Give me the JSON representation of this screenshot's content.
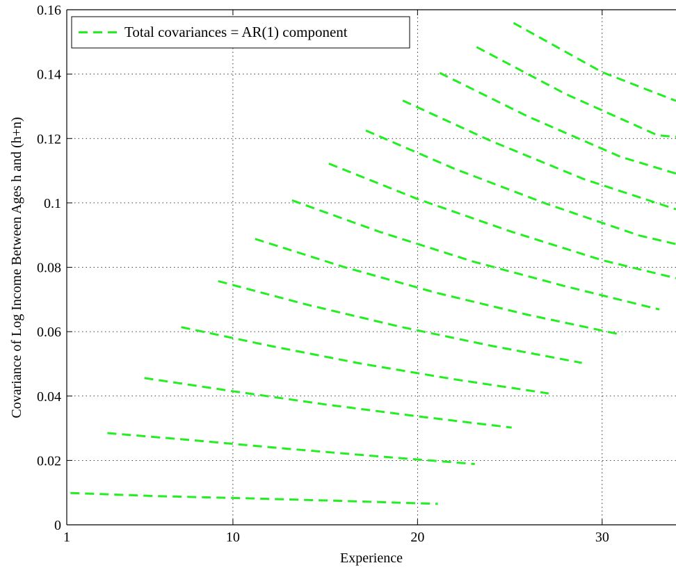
{
  "chart_data": {
    "type": "line",
    "xlabel": "Experience",
    "ylabel": "Covariance of Log Income Between Ages h and (h+n)",
    "xlim": [
      1,
      34
    ],
    "ylim": [
      0,
      0.16
    ],
    "xticks": [
      1,
      10,
      20,
      30
    ],
    "xtick_labels": [
      "1",
      "10",
      "20",
      "30"
    ],
    "yticks": [
      0,
      0.02,
      0.04,
      0.06,
      0.08,
      0.1,
      0.12,
      0.14,
      0.16
    ],
    "ytick_labels": [
      "0",
      "0.02",
      "0.04",
      "0.06",
      "0.08",
      "0.1",
      "0.12",
      "0.14",
      "0.16"
    ],
    "grid": true,
    "legend": {
      "position": "top-left",
      "entries": [
        "Total covariances = AR(1) component"
      ]
    },
    "line_color": "#22ee22",
    "series": [
      {
        "x": [
          1.2,
          6,
          11,
          16,
          21.1
        ],
        "y": [
          0.0099,
          0.0089,
          0.0082,
          0.0074,
          0.0065
        ]
      },
      {
        "x": [
          3.2,
          8,
          13,
          18,
          23.1
        ],
        "y": [
          0.0285,
          0.0262,
          0.0236,
          0.0212,
          0.0189
        ]
      },
      {
        "x": [
          5.2,
          10,
          15,
          20,
          25.1
        ],
        "y": [
          0.0456,
          0.0415,
          0.0374,
          0.0337,
          0.0302
        ]
      },
      {
        "x": [
          7.2,
          12,
          17,
          22,
          27.1
        ],
        "y": [
          0.0614,
          0.0556,
          0.05,
          0.0452,
          0.0408
        ]
      },
      {
        "x": [
          9.2,
          14,
          19,
          24,
          28.9
        ],
        "y": [
          0.0757,
          0.0684,
          0.0616,
          0.0556,
          0.0503
        ]
      },
      {
        "x": [
          11.2,
          16,
          21,
          26,
          31.1
        ],
        "y": [
          0.0888,
          0.0801,
          0.0721,
          0.0652,
          0.059
        ]
      },
      {
        "x": [
          13.2,
          18,
          23,
          28,
          33.1
        ],
        "y": [
          0.1008,
          0.0909,
          0.0818,
          0.0741,
          0.0669
        ]
      },
      {
        "x": [
          15.2,
          20,
          25,
          30,
          34.0
        ],
        "y": [
          0.1122,
          0.1012,
          0.0912,
          0.0822,
          0.0766
        ]
      },
      {
        "x": [
          17.2,
          22,
          27,
          32,
          34.0
        ],
        "y": [
          0.1225,
          0.1106,
          0.0997,
          0.0899,
          0.0872
        ]
      },
      {
        "x": [
          19.2,
          24,
          29,
          34.0
        ],
        "y": [
          0.1318,
          0.1192,
          0.1074,
          0.098
        ]
      },
      {
        "x": [
          21.2,
          26,
          31,
          34.0
        ],
        "y": [
          0.1404,
          0.1268,
          0.1143,
          0.1091
        ]
      },
      {
        "x": [
          23.2,
          28,
          33,
          34.0
        ],
        "y": [
          0.1484,
          0.1339,
          0.121,
          0.1205
        ]
      },
      {
        "x": [
          25.2,
          30,
          34.0
        ],
        "y": [
          0.1559,
          0.1406,
          0.1317
        ]
      }
    ]
  }
}
